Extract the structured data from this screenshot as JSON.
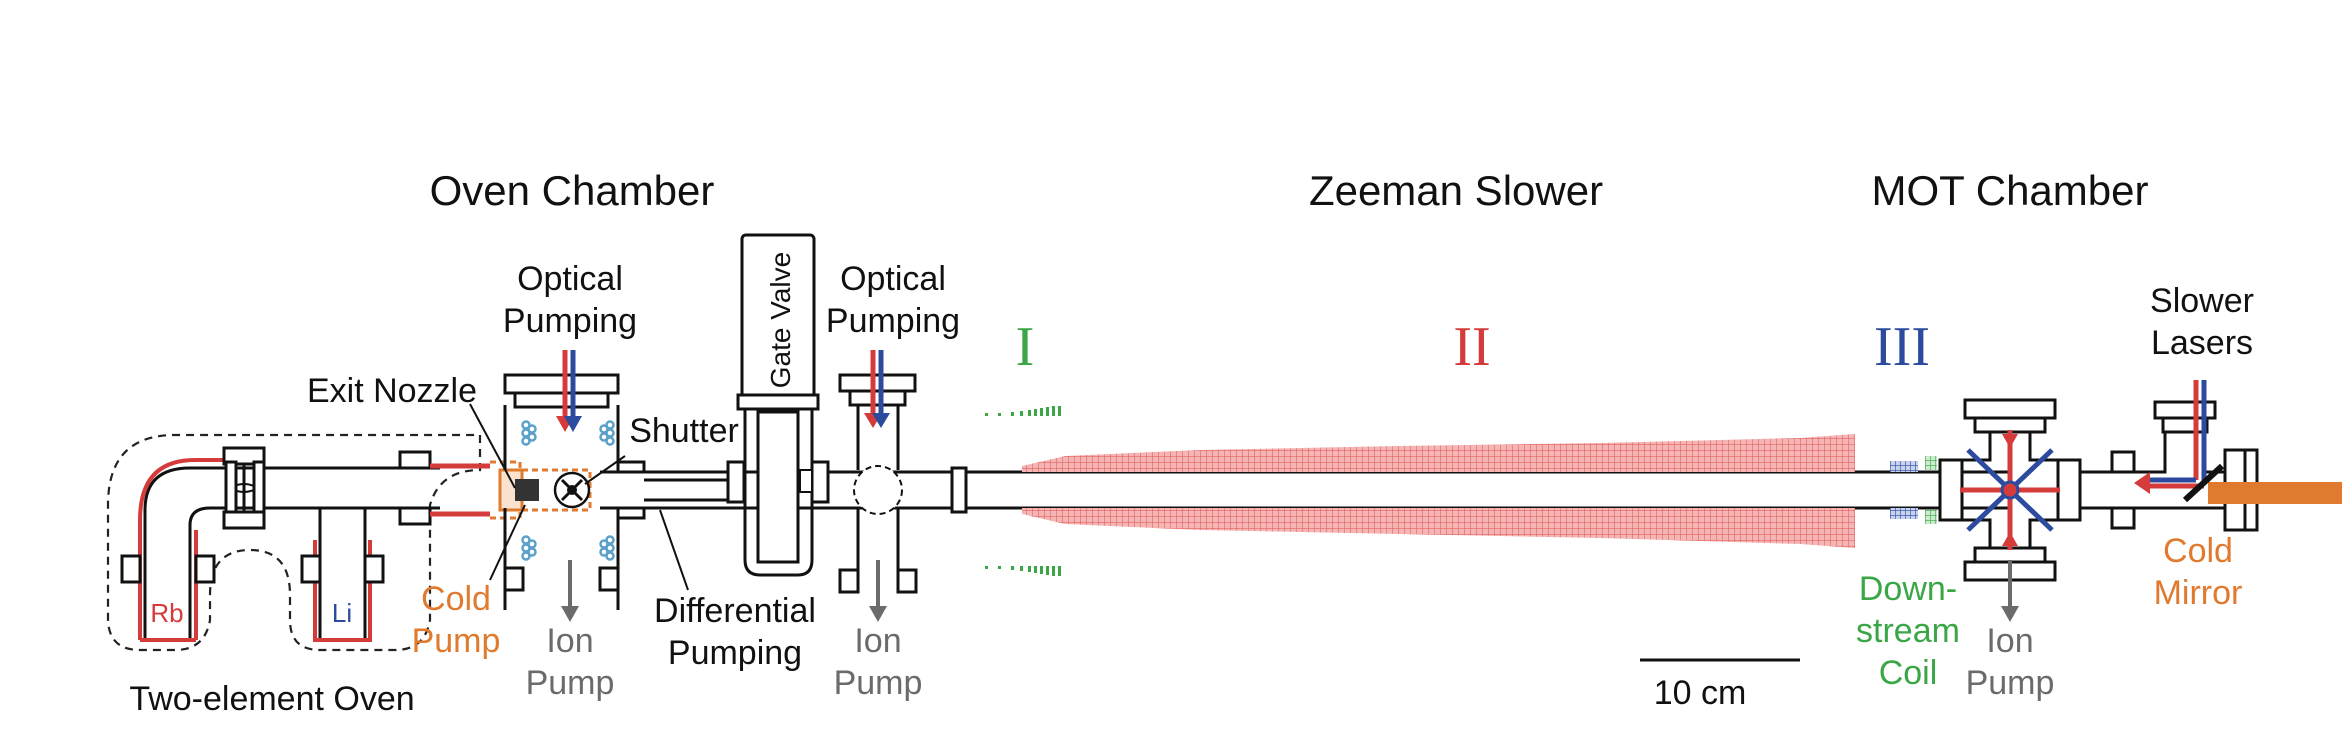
{
  "titles": {
    "oven_chamber": "Oven Chamber",
    "zeeman_slower": "Zeeman Slower",
    "mot_chamber": "MOT Chamber"
  },
  "labels": {
    "optical_pumping": [
      "Optical",
      "Pumping"
    ],
    "gate_valve": "Gate Valve",
    "exit_nozzle": "Exit Nozzle",
    "shutter": "Shutter",
    "cold_pump": [
      "Cold",
      "Pump"
    ],
    "ion_pump": [
      "Ion",
      "Pump"
    ],
    "differential_pumping": [
      "Differential",
      "Pumping"
    ],
    "two_element_oven": "Two-element Oven",
    "rb": "Rb",
    "li": "Li",
    "downstream_coil": [
      "Down-",
      "stream",
      "Coil"
    ],
    "cold_mirror": [
      "Cold",
      "Mirror"
    ],
    "slower_lasers": [
      "Slower",
      "Lasers"
    ],
    "scale_bar": "10 cm"
  },
  "sections": [
    "I",
    "II",
    "III"
  ],
  "colors": {
    "section_I": "#3aa646",
    "section_II": "#d63b3b",
    "section_III": "#2c4a9e",
    "coil_red": "#e8706f",
    "orange": "#e07a2e",
    "beam_red": "#d63b3b",
    "beam_blue": "#2c4a9e",
    "coil_blue": "#5aa0c8",
    "gray": "#6b6b6b"
  }
}
